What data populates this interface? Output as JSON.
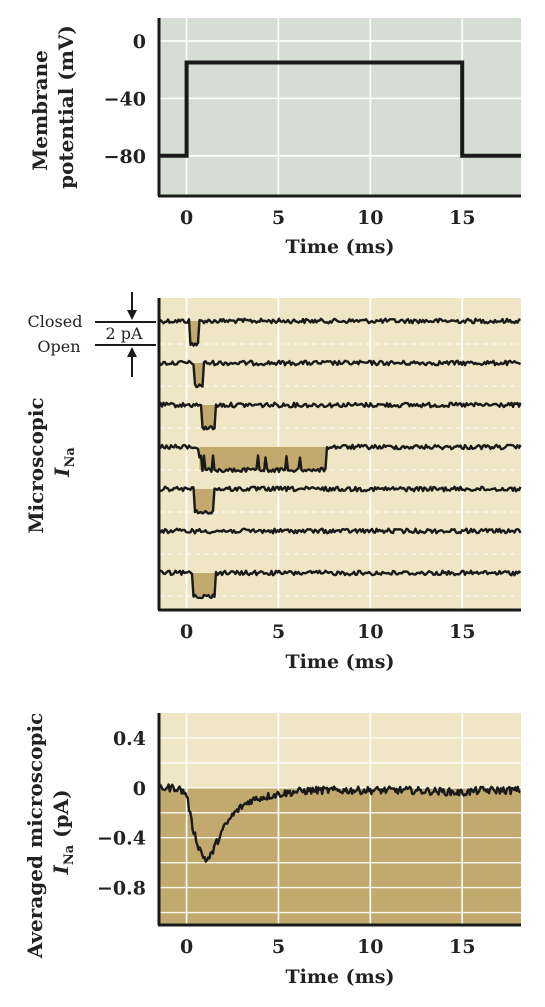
{
  "chart_data": [
    {
      "type": "line",
      "ylabel_lines": [
        "Membrane",
        "potential (mV)"
      ],
      "xlabel": "Time (ms)",
      "xlim": [
        -1.5,
        18.2
      ],
      "ylim": [
        -108,
        16
      ],
      "x_ticks": [
        0,
        5,
        10,
        15
      ],
      "y_ticks": [
        0,
        -40,
        -80
      ],
      "x_tick_labels": [
        "0",
        "5",
        "10",
        "15"
      ],
      "y_tick_labels": [
        "0",
        "−40",
        "−80"
      ],
      "grid": true,
      "series": [
        {
          "x": [
            -1.5,
            0,
            0,
            15,
            15,
            18.2
          ],
          "y": [
            -80,
            -80,
            -15,
            -15,
            -80,
            -80
          ]
        }
      ],
      "colors": {
        "background": "#d5ddd4",
        "line": "#1a1a1a"
      }
    },
    {
      "type": "line",
      "ylabel": "Microscopic",
      "ylabel_sub_main": "I",
      "ylabel_sub": "Na",
      "xlabel": "Time (ms)",
      "xlim": [
        -1.5,
        18.2
      ],
      "x_ticks": [
        0,
        5,
        10,
        15
      ],
      "x_tick_labels": [
        "0",
        "5",
        "10",
        "15"
      ],
      "grid": true,
      "scale_bar": {
        "closed_label": "Closed",
        "open_label": "Open",
        "amplitude_label": "2 pA",
        "amplitude": 2
      },
      "unit": "pA",
      "trace_count": 7,
      "openings": [
        [
          {
            "start": 0.2,
            "end": 0.7
          }
        ],
        [
          {
            "start": 0.4,
            "end": 0.9
          }
        ],
        [
          {
            "start": 0.8,
            "end": 1.6
          }
        ],
        [
          {
            "start": 0.7,
            "end": 7.6
          }
        ],
        [
          {
            "start": 0.4,
            "end": 1.5
          }
        ],
        [],
        [
          {
            "start": 0.3,
            "end": 1.6
          }
        ]
      ],
      "colors": {
        "background": "#f0e6c6",
        "opening": "#c2aa6e",
        "line": "#1a1a1a"
      }
    },
    {
      "type": "line",
      "ylabel": "Averaged microscopic",
      "ylabel_sub_main": "I",
      "ylabel_sub": "Na",
      "ylabel_suffix": " (pA)",
      "xlabel": "Time (ms)",
      "xlim": [
        -1.5,
        18.2
      ],
      "ylim": [
        -1.1,
        0.6
      ],
      "x_ticks": [
        0,
        5,
        10,
        15
      ],
      "y_ticks": [
        0.4,
        0,
        -0.4,
        -0.8
      ],
      "x_tick_labels": [
        "0",
        "5",
        "10",
        "15"
      ],
      "y_tick_labels": [
        "0.4",
        "0",
        "−0.4",
        "−0.8"
      ],
      "grid": true,
      "series": [
        {
          "x": [
            -1.5,
            -0.5,
            0,
            0.3,
            0.6,
            0.9,
            1.1,
            1.3,
            1.6,
            2,
            2.5,
            3,
            3.5,
            4,
            5,
            6,
            7,
            8,
            10,
            12,
            14,
            15,
            16,
            18.2
          ],
          "y": [
            0,
            0,
            -0.05,
            -0.3,
            -0.45,
            -0.55,
            -0.58,
            -0.55,
            -0.45,
            -0.33,
            -0.22,
            -0.15,
            -0.1,
            -0.08,
            -0.05,
            -0.03,
            -0.02,
            -0.02,
            -0.02,
            -0.02,
            -0.03,
            -0.04,
            -0.02,
            -0.02
          ]
        }
      ],
      "colors": {
        "background_upper": "#f0e6c6",
        "fill": "#c2aa6e",
        "line": "#1a1a1a"
      }
    }
  ]
}
